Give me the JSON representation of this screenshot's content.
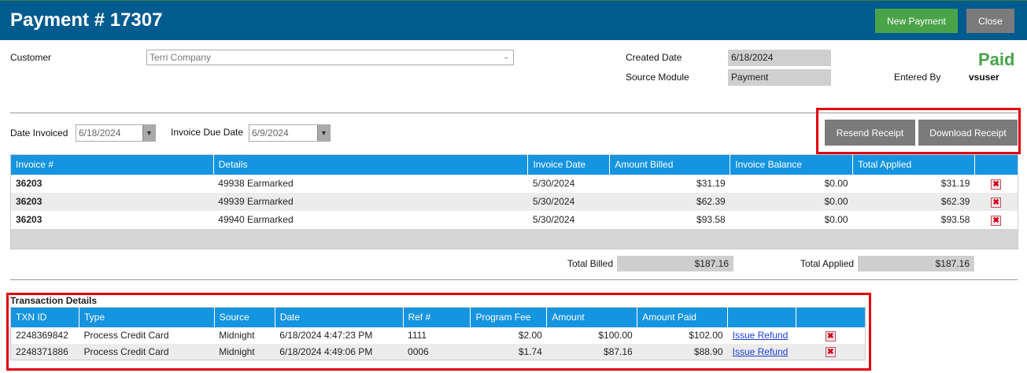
{
  "header": {
    "title": "Payment # 17307",
    "new_payment_label": "New Payment",
    "close_label": "Close"
  },
  "form": {
    "customer_label": "Customer",
    "customer_value": "Terri Company",
    "created_date_label": "Created Date",
    "created_date_value": "6/18/2024",
    "source_module_label": "Source Module",
    "source_module_value": "Payment",
    "status": "Paid",
    "entered_by_label": "Entered By",
    "entered_by_value": "vsuser",
    "date_invoiced_label": "Date Invoiced",
    "date_invoiced_value": "6/18/2024",
    "invoice_due_label": "Invoice Due Date",
    "invoice_due_value": "6/9/2024"
  },
  "actions": {
    "resend_receipt_label": "Resend Receipt",
    "download_receipt_label": "Download Receipt"
  },
  "invoices": {
    "columns": [
      "Invoice #",
      "Details",
      "Invoice Date",
      "Amount Billed",
      "Invoice Balance",
      "Total Applied",
      ""
    ],
    "rows": [
      {
        "invoice": "36203",
        "details": "49938 Earmarked",
        "date": "5/30/2024",
        "billed": "$31.19",
        "balance": "$0.00",
        "applied": "$31.19"
      },
      {
        "invoice": "36203",
        "details": "49939 Earmarked",
        "date": "5/30/2024",
        "billed": "$62.39",
        "balance": "$0.00",
        "applied": "$62.39"
      },
      {
        "invoice": "36203",
        "details": "49940 Earmarked",
        "date": "5/30/2024",
        "billed": "$93.58",
        "balance": "$0.00",
        "applied": "$93.58"
      }
    ],
    "total_billed_label": "Total Billed",
    "total_billed_value": "$187.16",
    "total_applied_label": "Total Applied",
    "total_applied_value": "$187.16"
  },
  "transactions": {
    "title": "Transaction Details",
    "columns": [
      "TXN ID",
      "Type",
      "Source",
      "Date",
      "Ref #",
      "Program Fee",
      "Amount",
      "Amount Paid",
      "",
      ""
    ],
    "rows": [
      {
        "txn_id": "2248369842",
        "type": "Process Credit Card",
        "source": "Midnight",
        "date": "6/18/2024 4:47:23 PM",
        "ref": "1111",
        "fee": "$2.00",
        "amount": "$100.00",
        "paid": "$102.00",
        "refund": "Issue Refund"
      },
      {
        "txn_id": "2248371886",
        "type": "Process Credit Card",
        "source": "Midnight",
        "date": "6/18/2024 4:49:06 PM",
        "ref": "0006",
        "fee": "$1.74",
        "amount": "$87.16",
        "paid": "$88.90",
        "refund": "Issue Refund"
      }
    ]
  },
  "colors": {
    "header_bg": "#005b8f",
    "grid_header": "#1594e0",
    "paid_green": "#4aa349",
    "highlight_red": "#e00010"
  },
  "icons": {
    "dropdown": "chevron-down-icon",
    "delete": "delete-x-icon"
  }
}
